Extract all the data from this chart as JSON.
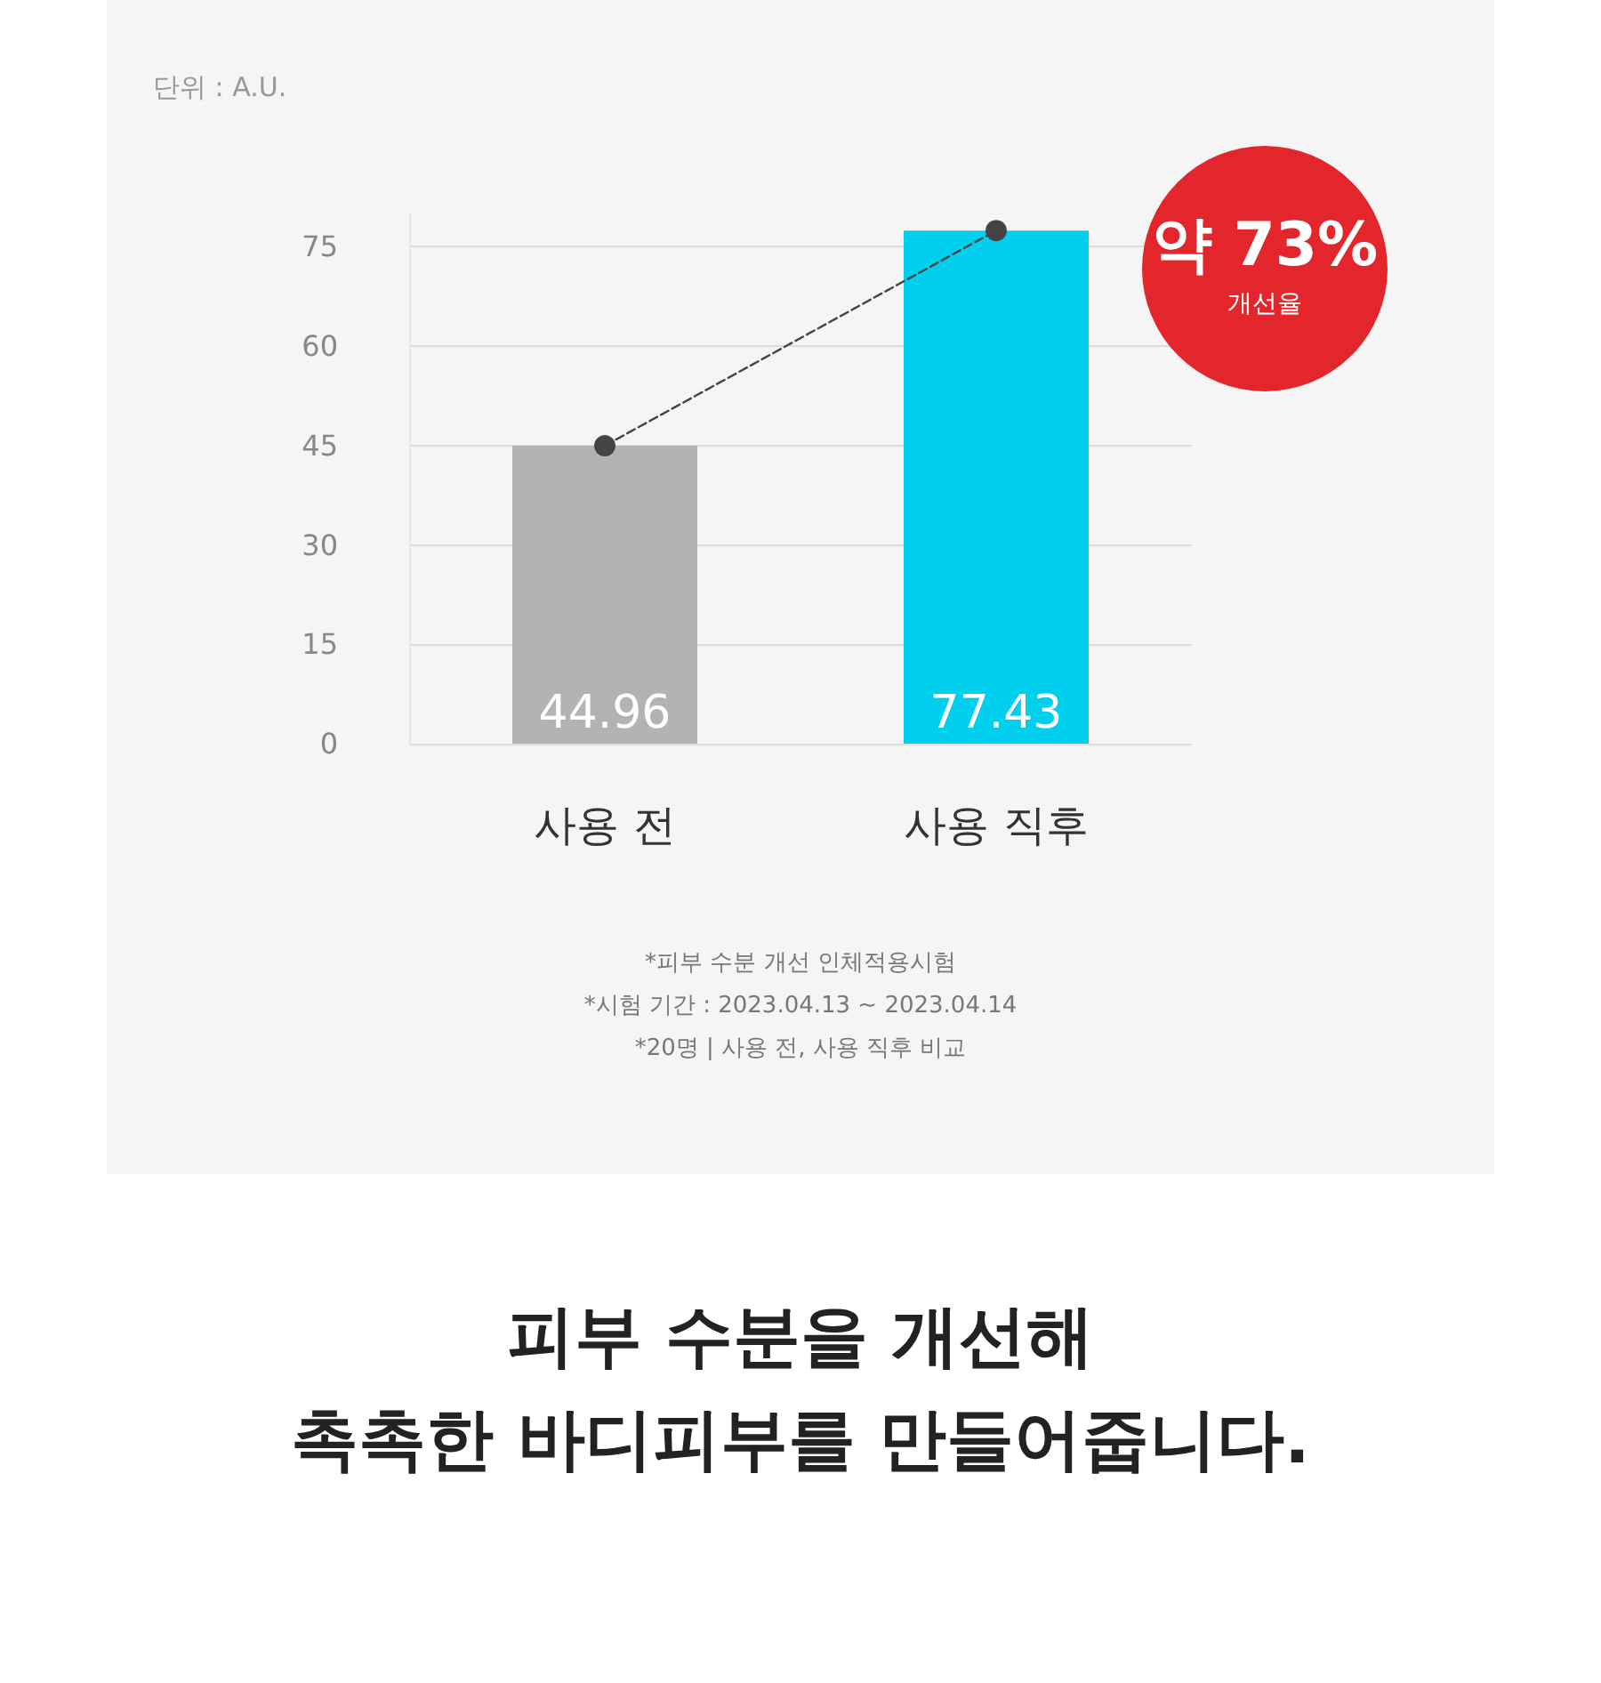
{
  "chart_data": {
    "type": "bar",
    "title": "피부 수분을 개선해\n촉촉한 바디피부를 만들어줍니다.",
    "ylabel": "단위 : A.U.",
    "categories": [
      "사용 전",
      "사용 직후"
    ],
    "series": [
      {
        "colors": [
          "#b3b3b3",
          "#00cfee"
        ],
        "values": [
          44.96,
          77.43
        ],
        "value_labels": [
          "44.96",
          "77.43"
        ]
      },
      {
        "type": "line",
        "color": "#444444",
        "values": [
          44.96,
          77.43
        ]
      }
    ],
    "ylim": [
      0,
      80
    ],
    "yticks": [
      0,
      15,
      30,
      45,
      60,
      75
    ],
    "grid": "y",
    "marker": "circle",
    "line_style": "dashed",
    "annotations": [
      "약 73%",
      "개선율",
      "*피부 수분 개선 인체적용시험",
      "*시험 기간 : 2023.04.13 ~ 2023.04.14",
      "*20명 | 사용 전, 사용 직후 비교"
    ]
  }
}
